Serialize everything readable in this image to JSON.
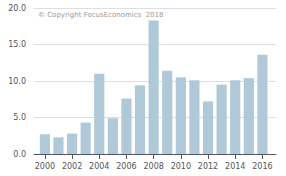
{
  "chart_data": {
    "type": "bar",
    "x": [
      2000,
      2001,
      2002,
      2003,
      2004,
      2005,
      2006,
      2007,
      2008,
      2009,
      2010,
      2011,
      2012,
      2013,
      2014,
      2015,
      2016
    ],
    "values": [
      2.7,
      2.3,
      2.8,
      4.3,
      11.0,
      4.9,
      7.6,
      9.4,
      18.3,
      11.4,
      10.5,
      10.1,
      7.2,
      9.5,
      10.1,
      10.4,
      13.6
    ],
    "color": "#b0c9d8",
    "xlim": [
      1999.2,
      2017.0
    ],
    "xticks": [
      2000,
      2002,
      2004,
      2006,
      2008,
      2010,
      2012,
      2014,
      2016
    ],
    "ylim": [
      0,
      20
    ],
    "yticks": [
      {
        "value": 0.0,
        "label": "0.0"
      },
      {
        "value": 5.0,
        "label": "5.0"
      },
      {
        "value": 10.0,
        "label": "10.0"
      },
      {
        "value": 15.0,
        "label": "15.0"
      },
      {
        "value": 20.0,
        "label": "20.0"
      }
    ],
    "grid": true,
    "annotations": [
      "© Copyright FocusEconomics  2018"
    ]
  }
}
